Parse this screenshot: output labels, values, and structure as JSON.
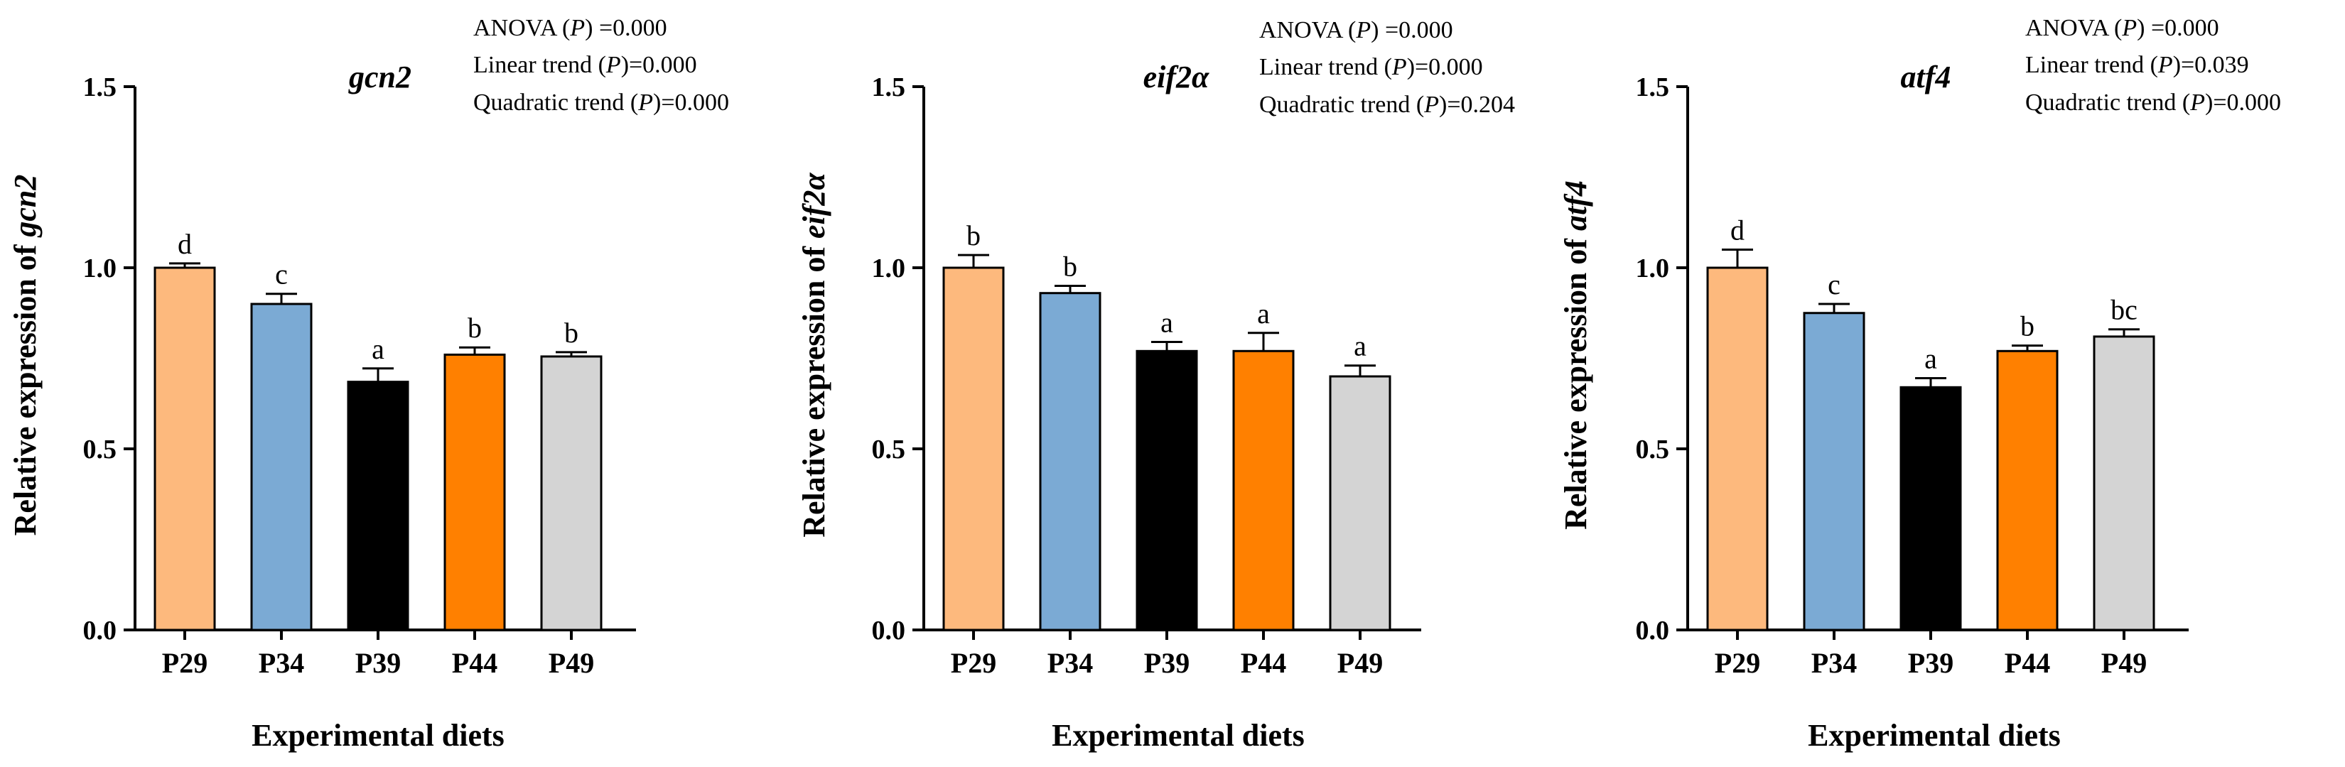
{
  "chart_data": [
    {
      "type": "bar",
      "title": "gcn2",
      "ylabel_prefix": "Relative expression  of ",
      "ylabel_gene": "gcn2",
      "xlabel": "Experimental diets",
      "categories": [
        "P29",
        "P34",
        "P39",
        "P44",
        "P49"
      ],
      "values": [
        1.0,
        0.9,
        0.685,
        0.76,
        0.755
      ],
      "errors": [
        0.012,
        0.028,
        0.037,
        0.02,
        0.012
      ],
      "letters": [
        "d",
        "c",
        "a",
        "b",
        "b"
      ],
      "ylim": [
        0,
        1.5
      ],
      "yticks": [
        "0.0",
        "0.5",
        "1.0",
        "1.5"
      ],
      "stats": [
        {
          "pre": "ANOVA  (",
          "p": "P",
          "post": ") =0.000"
        },
        {
          "pre": "Linear  trend (",
          "p": "P",
          "post": ")=0.000"
        },
        {
          "pre": "Quadratic  trend (",
          "p": "P",
          "post": ")=0.000"
        }
      ]
    },
    {
      "type": "bar",
      "title": "eif2α",
      "ylabel_prefix": "Relative expression  of ",
      "ylabel_gene": "eif2α",
      "xlabel": "Experimental diets",
      "categories": [
        "P29",
        "P34",
        "P39",
        "P44",
        "P49"
      ],
      "values": [
        1.0,
        0.93,
        0.77,
        0.77,
        0.7
      ],
      "errors": [
        0.035,
        0.02,
        0.025,
        0.05,
        0.03
      ],
      "letters": [
        "b",
        "b",
        "a",
        "a",
        "a"
      ],
      "ylim": [
        0,
        1.5
      ],
      "yticks": [
        "0.0",
        "0.5",
        "1.0",
        "1.5"
      ],
      "stats": [
        {
          "pre": "ANOVA  (",
          "p": "P",
          "post": ") =0.000"
        },
        {
          "pre": "Linear  trend (",
          "p": "P",
          "post": ")=0.000"
        },
        {
          "pre": "Quadratic  trend (",
          "p": "P",
          "post": ")=0.204"
        }
      ]
    },
    {
      "type": "bar",
      "title": "atf4",
      "ylabel_prefix": "Relative expression  of ",
      "ylabel_gene": "atf4",
      "xlabel": "Experimental diets",
      "categories": [
        "P29",
        "P34",
        "P39",
        "P44",
        "P49"
      ],
      "values": [
        1.0,
        0.875,
        0.67,
        0.77,
        0.81
      ],
      "errors": [
        0.05,
        0.025,
        0.025,
        0.015,
        0.02
      ],
      "letters": [
        "d",
        "c",
        "a",
        "b",
        "bc"
      ],
      "ylim": [
        0,
        1.5
      ],
      "yticks": [
        "0.0",
        "0.5",
        "1.0",
        "1.5"
      ],
      "stats": [
        {
          "pre": "ANOVA  (",
          "p": "P",
          "post": ") =0.000"
        },
        {
          "pre": "Linear  trend (",
          "p": "P",
          "post": ")=0.039"
        },
        {
          "pre": "Quadratic  trend (",
          "p": "P",
          "post": ")=0.000"
        }
      ]
    }
  ],
  "colors": {
    "P29": "#FDB97D",
    "P34": "#7BAAD4",
    "P39": "#000000",
    "P44": "#FF8000",
    "P49": "#D4D4D4",
    "axis": "#000000"
  }
}
